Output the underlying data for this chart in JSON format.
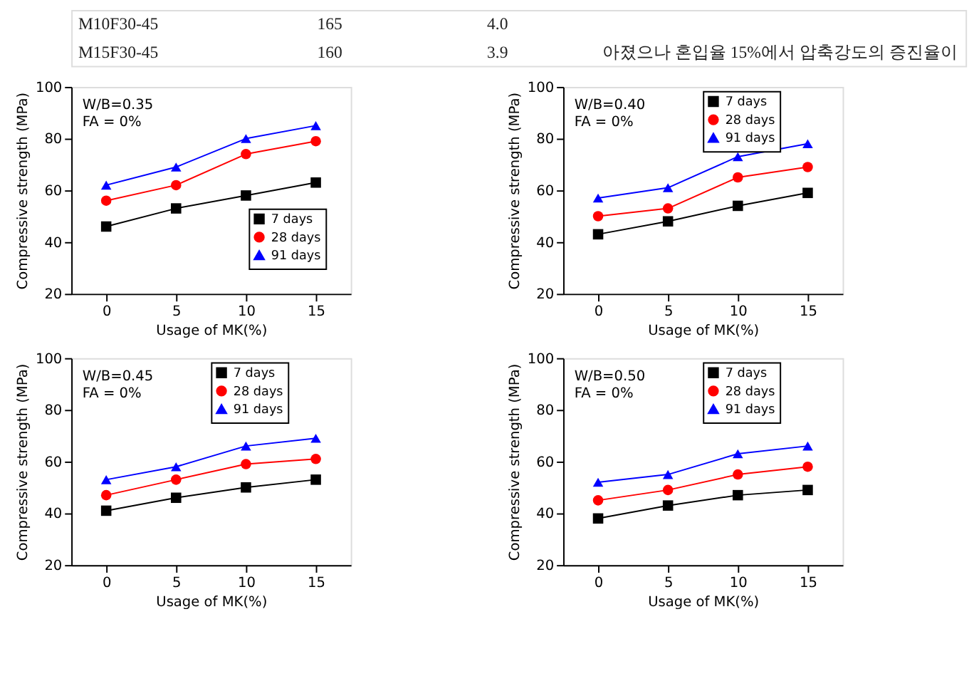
{
  "chart_data": [
    {
      "type": "other",
      "annotations": [
        "M10F30-45",
        "165",
        "4.0",
        "M15F30-45",
        "160",
        "3.9",
        "아졌으나 혼입율 15%에서 압축강도의 증진율이"
      ]
    },
    {
      "type": "line",
      "xlabel": "Usage of MK(%)",
      "ylabel": "Compressive strength (MPa)",
      "x": [
        0,
        5,
        10,
        15
      ],
      "xlim": [
        -2.5,
        17.5
      ],
      "xticks": [
        0,
        5,
        10,
        15
      ],
      "ylim": [
        20,
        100
      ],
      "yticks": [
        20,
        40,
        60,
        80,
        100
      ],
      "grid": false,
      "legend": "bottom right",
      "annotations": [
        "W/B=0.35\nFA = 0%"
      ],
      "series": [
        {
          "name": "7 days",
          "color": "#000000",
          "marker": "square",
          "values": [
            46,
            53,
            58,
            63
          ]
        },
        {
          "name": "28 days",
          "color": "#ff0000",
          "marker": "circle",
          "values": [
            56,
            62,
            74,
            79
          ]
        },
        {
          "name": "91 days",
          "color": "#0000ff",
          "marker": "triangle",
          "values": [
            62,
            69,
            80,
            85
          ]
        }
      ]
    },
    {
      "type": "line",
      "xlabel": "Usage of MK(%)",
      "ylabel": "Compressive strength (MPa)",
      "x": [
        0,
        5,
        10,
        15
      ],
      "xlim": [
        -2.5,
        17.5
      ],
      "xticks": [
        0,
        5,
        10,
        15
      ],
      "ylim": [
        20,
        100
      ],
      "yticks": [
        20,
        40,
        60,
        80,
        100
      ],
      "grid": false,
      "legend": "top right",
      "annotations": [
        "W/B=0.40\nFA = 0%"
      ],
      "series": [
        {
          "name": "7 days",
          "color": "#000000",
          "marker": "square",
          "values": [
            43,
            48,
            54,
            59
          ]
        },
        {
          "name": "28 days",
          "color": "#ff0000",
          "marker": "circle",
          "values": [
            50,
            53,
            65,
            69
          ]
        },
        {
          "name": "91 days",
          "color": "#0000ff",
          "marker": "triangle",
          "values": [
            57,
            61,
            73,
            78
          ]
        }
      ]
    },
    {
      "type": "line",
      "xlabel": "Usage of MK(%)",
      "ylabel": "Compressive strength (MPa)",
      "x": [
        0,
        5,
        10,
        15
      ],
      "xlim": [
        -2.5,
        17.5
      ],
      "xticks": [
        0,
        5,
        10,
        15
      ],
      "ylim": [
        20,
        100
      ],
      "yticks": [
        20,
        40,
        60,
        80,
        100
      ],
      "grid": false,
      "legend": "top right",
      "annotations": [
        "W/B=0.45\nFA = 0%"
      ],
      "series": [
        {
          "name": "7 days",
          "color": "#000000",
          "marker": "square",
          "values": [
            41,
            46,
            50,
            53
          ]
        },
        {
          "name": "28 days",
          "color": "#ff0000",
          "marker": "circle",
          "values": [
            47,
            53,
            59,
            61
          ]
        },
        {
          "name": "91 days",
          "color": "#0000ff",
          "marker": "triangle",
          "values": [
            53,
            58,
            66,
            69
          ]
        }
      ]
    },
    {
      "type": "line",
      "xlabel": "Usage of MK(%)",
      "ylabel": "Compressive strength (MPa)",
      "x": [
        0,
        5,
        10,
        15
      ],
      "xlim": [
        -2.5,
        17.5
      ],
      "xticks": [
        0,
        5,
        10,
        15
      ],
      "ylim": [
        20,
        100
      ],
      "yticks": [
        20,
        40,
        60,
        80,
        100
      ],
      "grid": false,
      "legend": "top right",
      "annotations": [
        "W/B=0.50\nFA = 0%"
      ],
      "series": [
        {
          "name": "7 days",
          "color": "#000000",
          "marker": "square",
          "values": [
            38,
            43,
            47,
            49
          ]
        },
        {
          "name": "28 days",
          "color": "#ff0000",
          "marker": "circle",
          "values": [
            45,
            49,
            55,
            58
          ]
        },
        {
          "name": "91 days",
          "color": "#0000ff",
          "marker": "triangle",
          "values": [
            52,
            55,
            63,
            66
          ]
        }
      ]
    }
  ]
}
